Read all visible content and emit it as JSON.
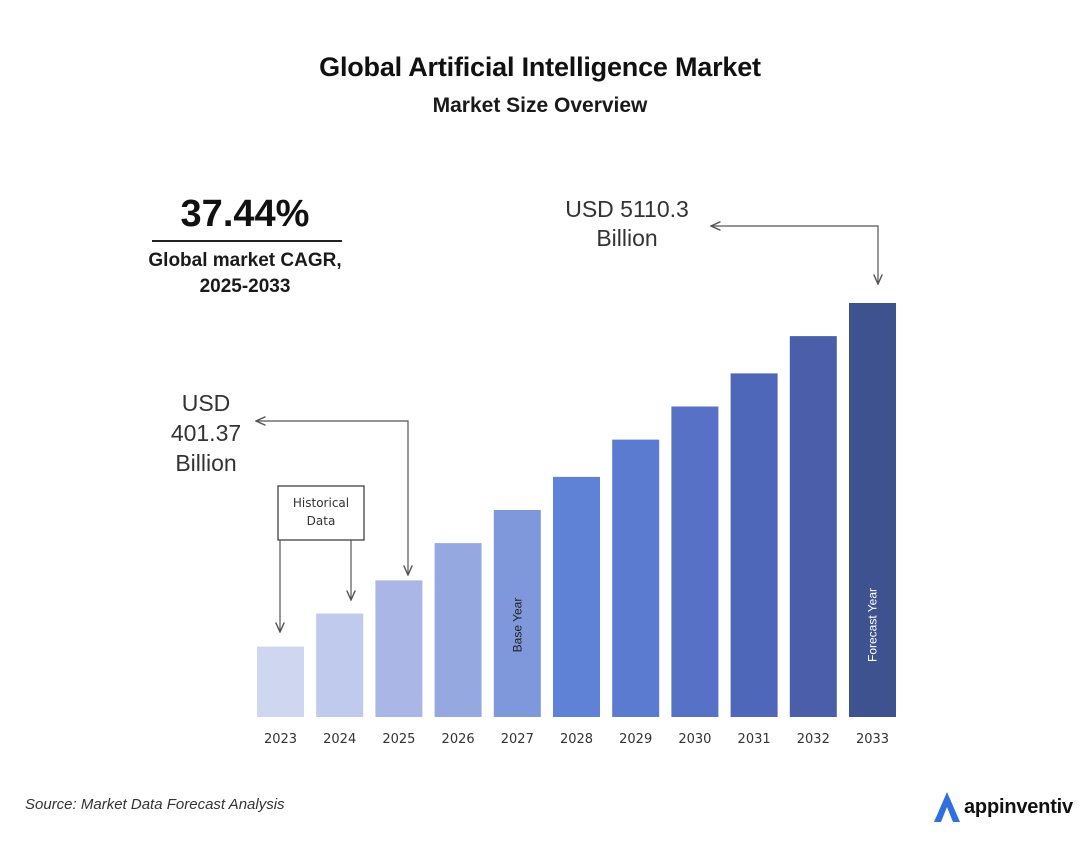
{
  "header": {
    "title": "Global Artificial Intelligence Market",
    "subtitle": "Market Size Overview"
  },
  "cagr": {
    "value": "37.44%",
    "caption_line1": "Global market CAGR,",
    "caption_line2": "2025-2033"
  },
  "annotations": {
    "start": [
      "USD",
      "401.37",
      "Billion"
    ],
    "end": [
      "USD 5110.3",
      "Billion"
    ],
    "historical": [
      "Historical",
      "Data"
    ],
    "base_year": "Base Year",
    "forecast_year": "Forecast Year"
  },
  "footer": {
    "source": "Source: Market Data Forecast Analysis",
    "brand": "appinventiv"
  },
  "colors": {
    "bars": [
      "#cfd6f0",
      "#bfcaec",
      "#aab7e6",
      "#95a8e0",
      "#7f98dc",
      "#5f82d6",
      "#5a7bd0",
      "#5671c6",
      "#4f67b9",
      "#4a5ea9",
      "#3f5290"
    ],
    "arrow": "#555555",
    "brand_blue": "#2f6fe0"
  },
  "chart_data": {
    "type": "bar",
    "categories": [
      "2023",
      "2024",
      "2025",
      "2026",
      "2027",
      "2028",
      "2029",
      "2030",
      "2031",
      "2032",
      "2033"
    ],
    "values": [
      null,
      null,
      401.37,
      null,
      null,
      null,
      null,
      null,
      null,
      null,
      5110.3
    ],
    "unit": "USD Billion",
    "relative_heights": [
      0.17,
      0.25,
      0.33,
      0.42,
      0.5,
      0.58,
      0.67,
      0.75,
      0.83,
      0.92,
      1.0
    ],
    "title": "Global Artificial Intelligence Market",
    "subtitle": "Market Size Overview",
    "grid": false,
    "legend": "none"
  }
}
